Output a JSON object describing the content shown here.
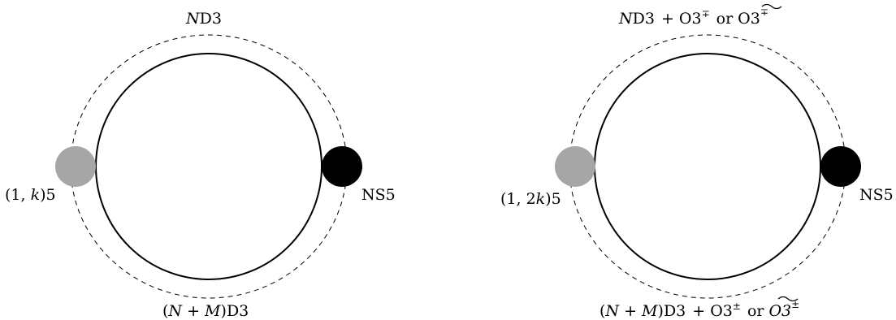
{
  "colors": {
    "background": "#ffffff",
    "line": "#000000",
    "left_brane_fill": "#a6a6a6",
    "right_brane_fill": "#000000"
  },
  "left_diagram": {
    "top_label": {
      "N": "N",
      "rest": "D3"
    },
    "bottom_label": {
      "paren_open": "(",
      "N": "N",
      "plus": " + ",
      "M": "M",
      "paren_close": ")",
      "rest": "D3"
    },
    "left_brane_label": {
      "open": "(1, ",
      "k": "k",
      "close": ")5"
    },
    "right_brane_label": "NS5"
  },
  "right_diagram": {
    "top_label": {
      "N": "N",
      "d3": "D3",
      "plus_o3": "+ O3",
      "o3_sup": "∓",
      "or": "or",
      "tilde_o3": "O3",
      "tilde_sup": "∓"
    },
    "bottom_label": {
      "paren_open": "(",
      "N": "N",
      "plus": " + ",
      "M": "M",
      "paren_close": ")",
      "d3": "D3",
      "plus_o3": "+ O3",
      "o3_sup": "±",
      "or": "or",
      "tilde_o3": "O3",
      "tilde_sup": "±"
    },
    "left_brane_label": {
      "open": "(1, 2",
      "k": "k",
      "close": ")5"
    },
    "right_brane_label": "NS5"
  }
}
